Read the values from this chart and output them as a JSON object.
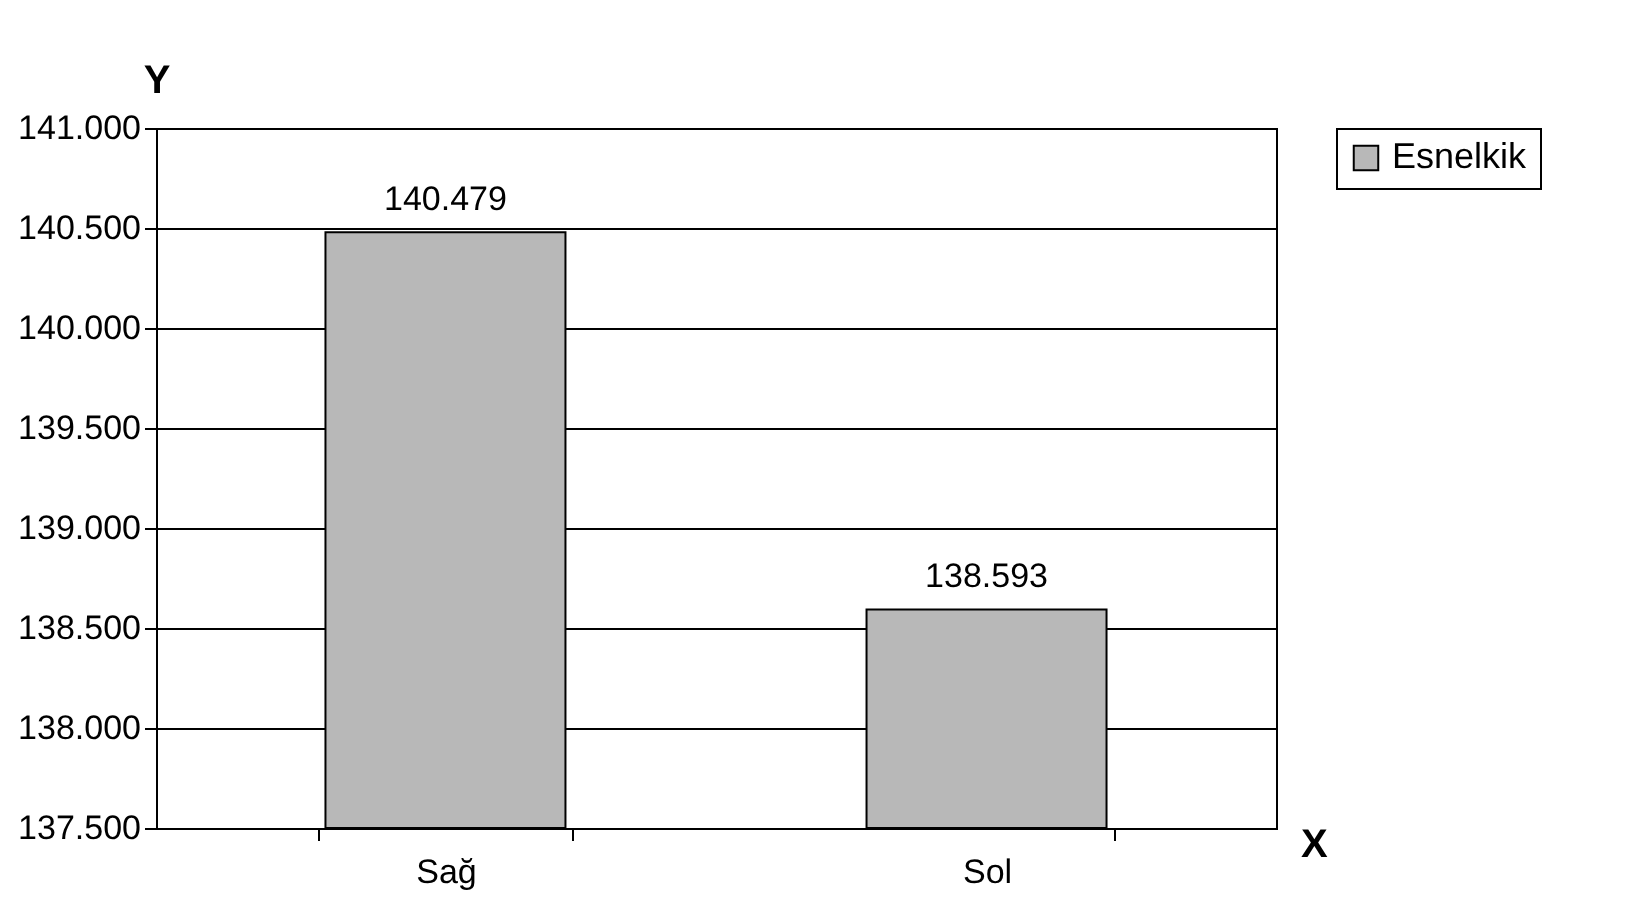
{
  "chart_data": {
    "type": "bar",
    "xlabel": "X",
    "ylabel": "Y",
    "categories": [
      "Sağ",
      "Sol"
    ],
    "series": [
      {
        "name": "Esnelkik",
        "color": "#b8b8b8",
        "values": [
          140.479,
          138.593
        ]
      }
    ],
    "ylim": [
      137.5,
      141
    ],
    "yticks": [
      {
        "value": 137.5,
        "label": "137.500"
      },
      {
        "value": 138,
        "label": "138.000"
      },
      {
        "value": 138.5,
        "label": "138.500"
      },
      {
        "value": 139,
        "label": "139.000"
      },
      {
        "value": 139.5,
        "label": "139.500"
      },
      {
        "value": 140,
        "label": "140.000"
      },
      {
        "value": 140.5,
        "label": "140.500"
      },
      {
        "value": 141,
        "label": "141.000"
      }
    ],
    "grid": "y",
    "legend": "right",
    "data_labels": true
  }
}
